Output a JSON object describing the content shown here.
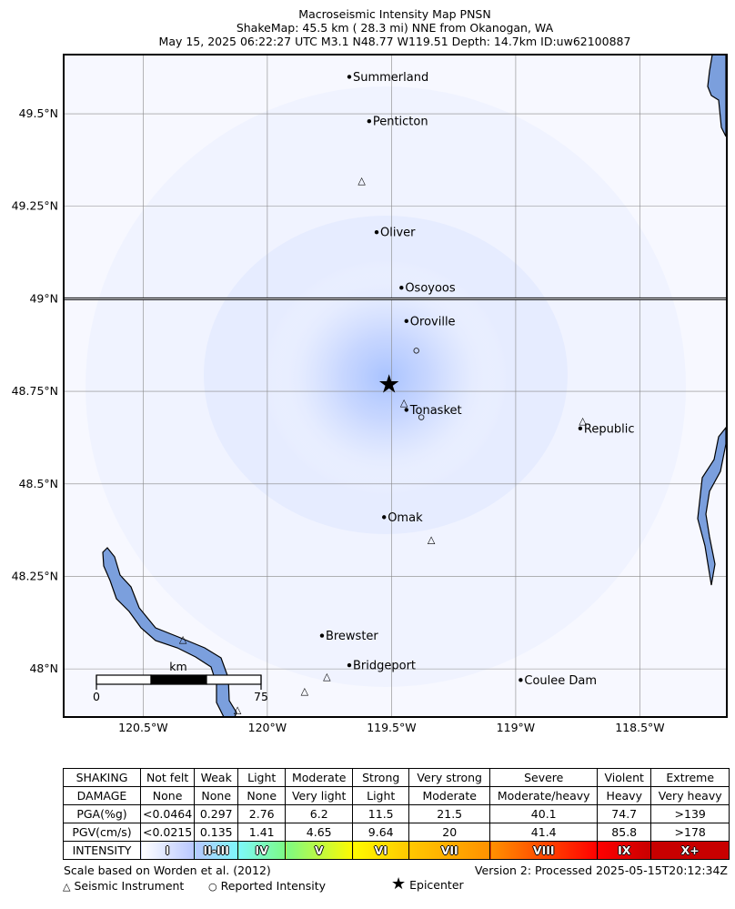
{
  "title": {
    "line1": "Macroseismic Intensity Map PNSN",
    "line2": "ShakeMap: 45.5 km (  28.3 mi) NNE from Okanogan, WA",
    "line3": "May 15, 2025 06:22:27 UTC M3.1 N48.77 W119.51 Depth: 14.7km ID:uw62100887"
  },
  "map": {
    "lon_range": [
      -120.82,
      -118.15
    ],
    "lat_range": [
      47.87,
      49.66
    ],
    "x_ticks": [
      {
        "value": -120.5,
        "label": "120.5°W"
      },
      {
        "value": -120.0,
        "label": "120°W"
      },
      {
        "value": -119.5,
        "label": "119.5°W"
      },
      {
        "value": -119.0,
        "label": "119°W"
      },
      {
        "value": -118.5,
        "label": "118.5°W"
      }
    ],
    "y_ticks": [
      {
        "value": 49.5,
        "label": "49.5°N"
      },
      {
        "value": 49.25,
        "label": "49.25°N"
      },
      {
        "value": 49.0,
        "label": "49°N"
      },
      {
        "value": 48.75,
        "label": "48.75°N"
      },
      {
        "value": 48.5,
        "label": "48.5°N"
      },
      {
        "value": 48.25,
        "label": "48.25°N"
      },
      {
        "value": 48.0,
        "label": "48°N"
      }
    ],
    "border_lat": 49.0,
    "epicenter": {
      "lon": -119.51,
      "lat": 48.77
    },
    "cities": [
      {
        "name": "Summerland",
        "lon": -119.67,
        "lat": 49.6
      },
      {
        "name": "Penticton",
        "lon": -119.59,
        "lat": 49.48
      },
      {
        "name": "Oliver",
        "lon": -119.56,
        "lat": 49.18
      },
      {
        "name": "Osoyoos",
        "lon": -119.46,
        "lat": 49.03
      },
      {
        "name": "Oroville",
        "lon": -119.44,
        "lat": 48.94
      },
      {
        "name": "Tonasket",
        "lon": -119.44,
        "lat": 48.7
      },
      {
        "name": "Republic",
        "lon": -118.74,
        "lat": 48.65
      },
      {
        "name": "Omak",
        "lon": -119.53,
        "lat": 48.41
      },
      {
        "name": "Brewster",
        "lon": -119.78,
        "lat": 48.09
      },
      {
        "name": "Bridgeport",
        "lon": -119.67,
        "lat": 48.01
      },
      {
        "name": "Coulee Dam",
        "lon": -118.98,
        "lat": 47.97
      }
    ],
    "stations": [
      {
        "lon": -119.62,
        "lat": 49.32
      },
      {
        "lon": -119.45,
        "lat": 48.72
      },
      {
        "lon": -118.73,
        "lat": 48.67
      },
      {
        "lon": -119.34,
        "lat": 48.35
      },
      {
        "lon": -120.34,
        "lat": 48.08
      },
      {
        "lon": -119.76,
        "lat": 47.98
      },
      {
        "lon": -119.85,
        "lat": 47.94
      },
      {
        "lon": -120.12,
        "lat": 47.89
      }
    ],
    "reported": [
      {
        "lon": -119.4,
        "lat": 48.86
      },
      {
        "lon": -119.38,
        "lat": 48.68
      }
    ],
    "scale_bar": {
      "unit": "km",
      "start": "0",
      "end": "75"
    },
    "colors": {
      "water": "#7b9fdd",
      "background": "#f7f8ff",
      "intensity_center": "#a9c3ff"
    }
  },
  "legend": {
    "rows": [
      {
        "key": "SHAKING",
        "cells": [
          "Not felt",
          "Weak",
          "Light",
          "Moderate",
          "Strong",
          "Very strong",
          "Severe",
          "Violent",
          "Extreme"
        ]
      },
      {
        "key": "DAMAGE",
        "cells": [
          "None",
          "None",
          "None",
          "Very light",
          "Light",
          "Moderate",
          "Moderate/heavy",
          "Heavy",
          "Very heavy"
        ]
      },
      {
        "key": "PGA(%g)",
        "cells": [
          "<0.0464",
          "0.297",
          "2.76",
          "6.2",
          "11.5",
          "21.5",
          "40.1",
          "74.7",
          ">139"
        ]
      },
      {
        "key": "PGV(cm/s)",
        "cells": [
          "<0.0215",
          "0.135",
          "1.41",
          "4.65",
          "9.64",
          "20",
          "41.4",
          "85.8",
          ">178"
        ]
      }
    ],
    "intensity": {
      "key": "INTENSITY",
      "cells": [
        "I",
        "II-III",
        "IV",
        "V",
        "VI",
        "VII",
        "VIII",
        "IX",
        "X+"
      ],
      "colors": [
        "#ffffff",
        "#b8c7ff",
        "#7df8fa",
        "#7cfa85",
        "#fefa00",
        "#ffc800",
        "#ff9100",
        "#ff0000",
        "#c80000"
      ]
    }
  },
  "footer": {
    "scale_note": "Scale based on Worden et al. (2012)",
    "version": "Version 2: Processed 2025-05-15T20:12:34Z",
    "seismic_instrument": "Seismic Instrument",
    "reported_intensity": "Reported Intensity",
    "epicenter": "Epicenter"
  }
}
